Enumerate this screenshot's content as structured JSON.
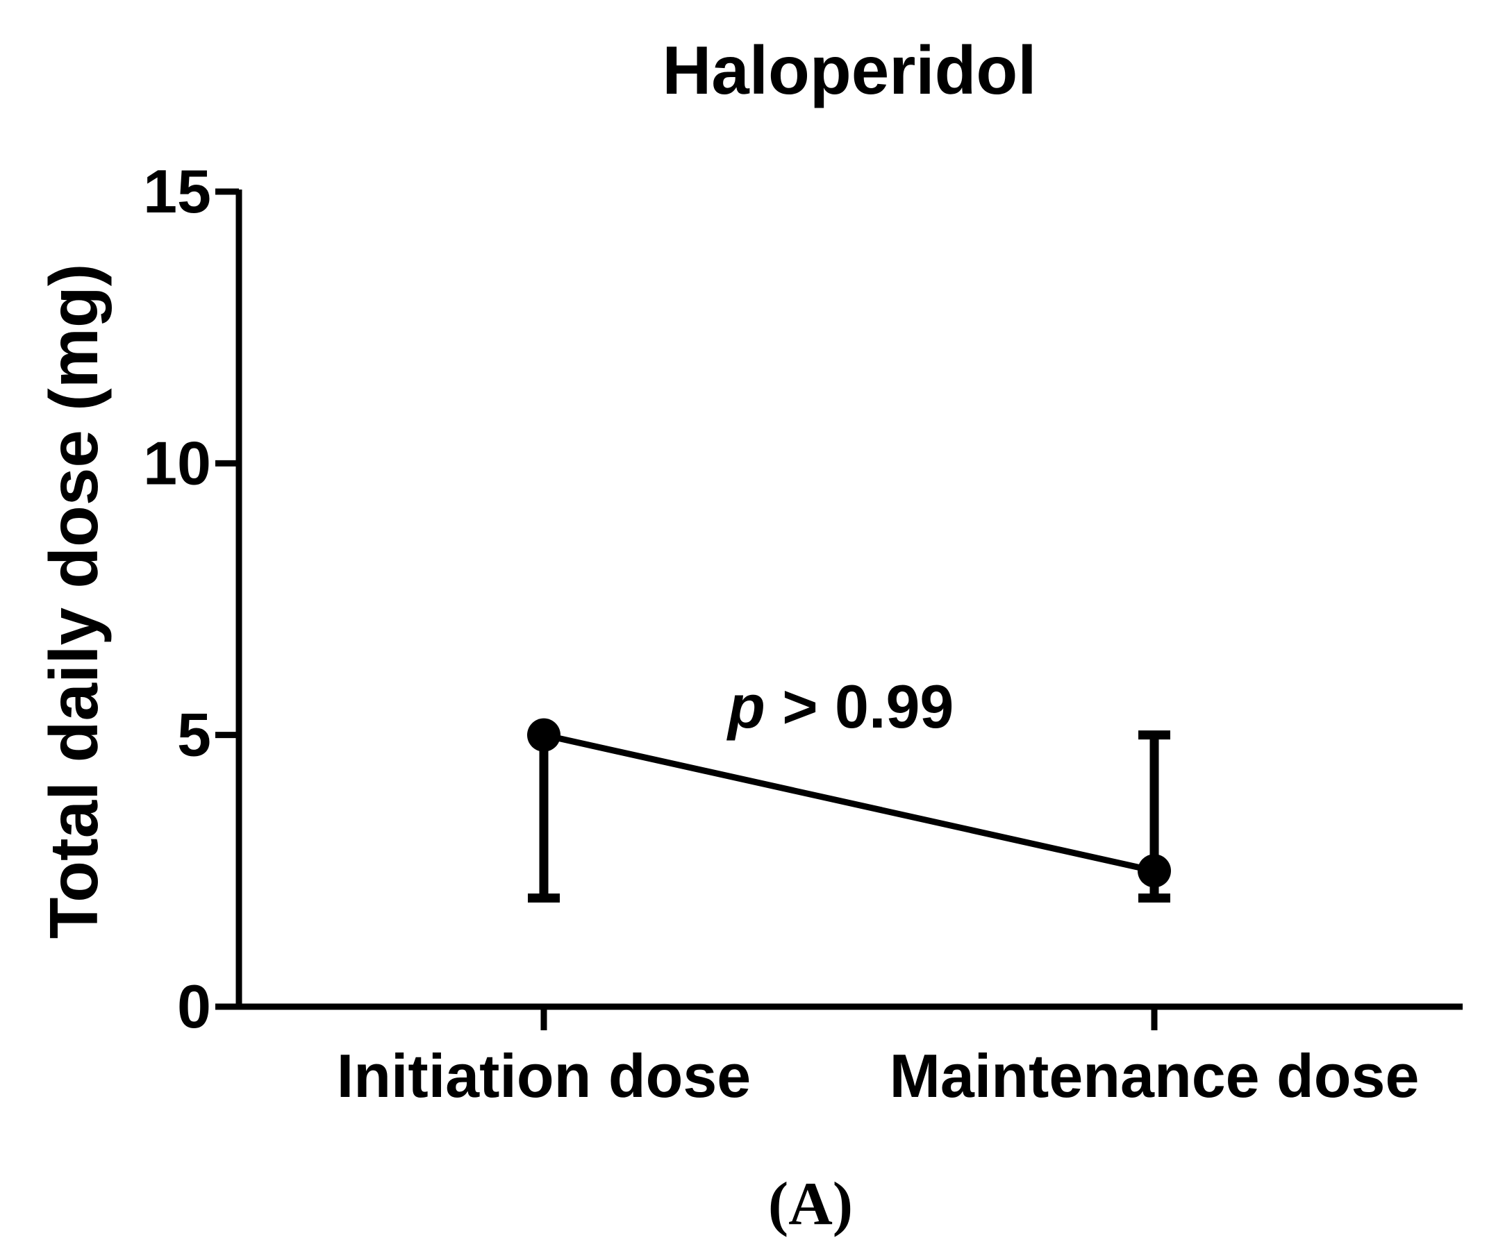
{
  "chart_data": {
    "type": "line",
    "title": "Haloperidol",
    "ylabel": "Total daily dose (mg)",
    "xlabel": "",
    "categories": [
      "Initiation dose",
      "Maintenance dose"
    ],
    "ylim": [
      0,
      15
    ],
    "yticks": [
      "0",
      "5",
      "10",
      "15"
    ],
    "series": [
      {
        "values": [
          5,
          2.5
        ],
        "error_low": [
          2,
          2
        ],
        "error_high": [
          5,
          5
        ]
      }
    ],
    "annotation": {
      "italic": "p",
      "rest": " > 0.99"
    },
    "panel_label": "(A)",
    "grid": false,
    "legend": "none",
    "color": "#000000"
  }
}
